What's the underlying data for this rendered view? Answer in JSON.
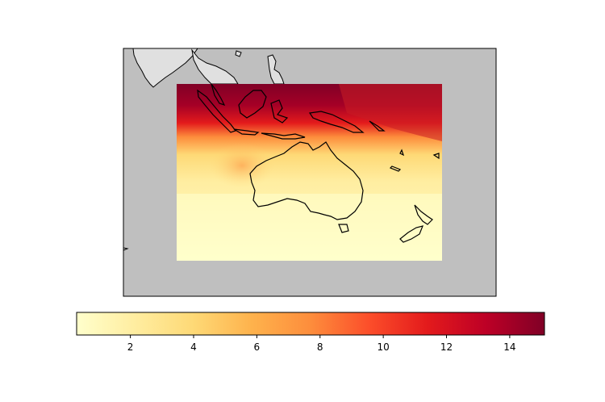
{
  "map": {
    "region": "Australia and Maritime Continent",
    "background_color": "#bfbfbf",
    "land_color_outside_data": "#e0e0e0",
    "coastline_color": "#000000",
    "colormap": "YlOrRd"
  },
  "colorbar": {
    "orientation": "horizontal",
    "min": 0.3,
    "max": 15.1,
    "ticks": [
      {
        "value": 2,
        "label": "2"
      },
      {
        "value": 4,
        "label": "4"
      },
      {
        "value": 6,
        "label": "6"
      },
      {
        "value": 8,
        "label": "8"
      },
      {
        "value": 10,
        "label": "10"
      },
      {
        "value": 12,
        "label": "12"
      },
      {
        "value": 14,
        "label": "14"
      }
    ],
    "stops": [
      "#ffffcc",
      "#ffeda0",
      "#fed976",
      "#feb24c",
      "#fd8d3c",
      "#fc4e2a",
      "#e31a1c",
      "#bd0026",
      "#800026"
    ]
  }
}
